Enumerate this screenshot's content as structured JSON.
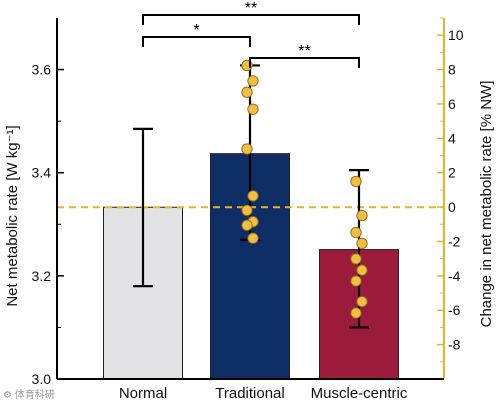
{
  "chart_data": {
    "type": "bar",
    "categories": [
      "Normal",
      "Traditional",
      "Muscle-centric"
    ],
    "values": [
      3.333,
      3.437,
      3.251
    ],
    "error_bars": [
      {
        "low": 3.18,
        "high": 3.485
      },
      {
        "low": 3.27,
        "high": 3.608
      },
      {
        "low": 3.1,
        "high": 3.405
      }
    ],
    "bar_colors": [
      "#e3e3e5",
      "#0d2d64",
      "#9c1b3d"
    ],
    "points": [
      [],
      [
        3.608,
        3.578,
        3.556,
        3.523,
        3.446,
        3.355,
        3.327,
        3.305,
        3.298,
        3.273
      ],
      [
        3.383,
        3.317,
        3.284,
        3.263,
        3.233,
        3.211,
        3.19,
        3.15,
        3.128
      ]
    ],
    "point_color": "#f2bd45",
    "ylabel": "Net metabolic rate [W kg⁻¹]",
    "ylim": [
      3.0,
      3.7
    ],
    "yticks": [
      "3.0",
      "3.2",
      "3.4",
      "3.6"
    ],
    "y2label": "Change in net metabolic rate [% NW]",
    "y2lim": [
      -10,
      11
    ],
    "y2ticks": [
      "-8",
      "-6",
      "-4",
      "-2",
      "0",
      "2",
      "4",
      "6",
      "8",
      "10"
    ],
    "y2_color": "#e5b330",
    "reference_line": 3.333,
    "significance": [
      {
        "from": 0,
        "to": 2,
        "label": "**"
      },
      {
        "from": 0,
        "to": 1,
        "label": "*"
      },
      {
        "from": 1,
        "to": 2,
        "label": "**"
      }
    ],
    "watermark": "⚙ 体育科研"
  }
}
